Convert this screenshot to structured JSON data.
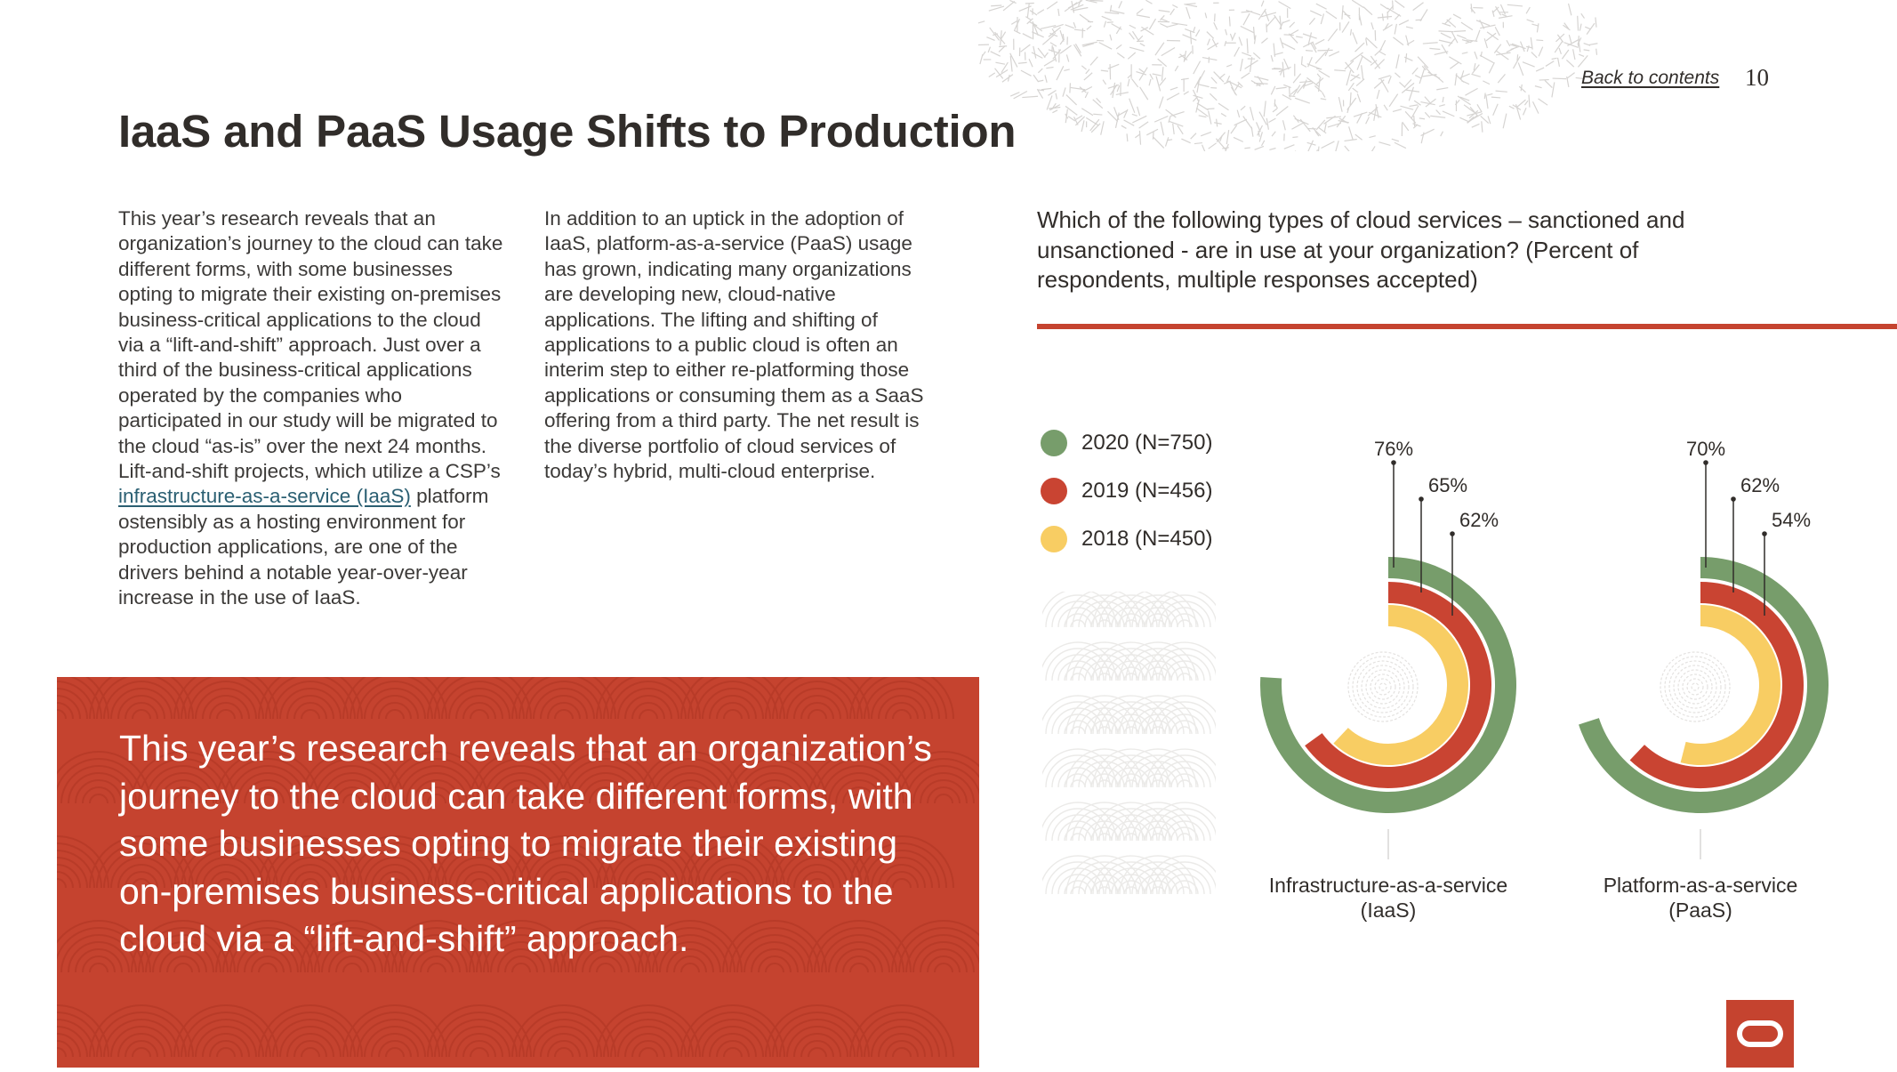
{
  "header": {
    "back_link": "Back to contents",
    "page_number": "10",
    "title": "IaaS and PaaS Usage Shifts to Production"
  },
  "body": {
    "col1_part1": "This year’s research reveals that an organization’s journey to the cloud can take different forms, with some businesses opting to migrate their existing on-premises business-critical applications to the cloud via a “lift-and-shift” approach. Just over a third of the business-critical applications operated by the companies who participated in our study will be migrated to the cloud “as-is” over the next 24 months. Lift-and-shift projects, which utilize a CSP’s ",
    "col1_link": "infrastructure-as-a-service (IaaS)",
    "col1_part2": " platform ostensibly as a hosting environment for production applications, are one of the drivers behind a notable year-over-year increase in the use of IaaS.",
    "col2": "In addition to an uptick in the adoption of IaaS, platform-as-a-service (PaaS) usage has grown, indicating many organizations are developing new, cloud-native applications. The lifting and shifting of applications to a public cloud is often an interim step to either re-platforming those applications or consuming them as a SaaS offering from a third party. The net result is the diverse portfolio of cloud services of today’s hybrid, multi-cloud enterprise."
  },
  "pullquote": "This year’s research reveals that an organization’s journey to the cloud can take different forms, with some businesses opting to migrate their existing on-premises business-critical applications to the cloud via a “lift-and-shift” approach.",
  "chart_question": "Which of the following types of cloud services – sanctioned and unsanctioned - are in use at your organization? (Percent of respondents, multiple responses accepted)",
  "colors": {
    "accent_red": "#c5432f",
    "series_2020": "#779d6b",
    "series_2019": "#c94432",
    "series_2018": "#f8cd63"
  },
  "chart_data": {
    "type": "radial-bar",
    "title": "Which of the following types of cloud services – sanctioned and unsanctioned - are in use at your organization? (Percent of respondents, multiple responses accepted)",
    "value_max": 100,
    "legend_position": "left",
    "legend": [
      {
        "name": "2020 (N=750)",
        "color": "#779d6b"
      },
      {
        "name": "2019 (N=456)",
        "color": "#c94432"
      },
      {
        "name": "2018 (N=450)",
        "color": "#f8cd63"
      }
    ],
    "categories": [
      {
        "label_line1": "Infrastructure-as-a-service",
        "label_line2": "(IaaS)",
        "values": [
          76,
          65,
          62
        ],
        "labels": [
          "76%",
          "65%",
          "62%"
        ]
      },
      {
        "label_line1": "Platform-as-a-service",
        "label_line2": "(PaaS)",
        "values": [
          70,
          62,
          54
        ],
        "labels": [
          "70%",
          "62%",
          "54%"
        ]
      }
    ]
  }
}
